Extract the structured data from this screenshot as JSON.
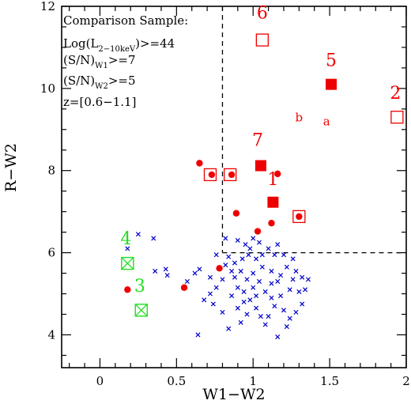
{
  "chart_data": {
    "type": "scatter",
    "title": "",
    "xlabel": "W1−W2",
    "ylabel": "R−W2",
    "xlim": [
      -0.25,
      2.0
    ],
    "ylim": [
      3.2,
      12.0
    ],
    "xticks": [
      0,
      0.5,
      1,
      1.5,
      2
    ],
    "xtick_labels": [
      "0",
      "0.5",
      "1",
      "1.5",
      "2"
    ],
    "yticks": [
      4,
      6,
      8,
      10,
      12
    ],
    "ytick_labels": [
      "4",
      "6",
      "8",
      "10",
      "12"
    ],
    "grid": false,
    "legend_position": "top-left",
    "legend": {
      "line1": "Comparison Sample:",
      "line2_main": "Log(L",
      "line2_sub": "2−10keV",
      "line2_tail": ")>=44",
      "line3_main": "(S/N)",
      "line3_sub": "W1",
      "line3_tail": ">=7",
      "line4_main": "(S/N)",
      "line4_sub": "W2",
      "line4_tail": ">=5",
      "line5": "z=[0.6−1.1]"
    },
    "region_cut": {
      "x_min": 0.8,
      "y_min": 6.0,
      "style": "dashed"
    },
    "series": [
      {
        "marker": "cross",
        "color": "#0000cc",
        "points": [
          [
            0.25,
            6.45
          ],
          [
            0.35,
            6.35
          ],
          [
            0.18,
            6.1
          ],
          [
            0.43,
            5.6
          ],
          [
            0.36,
            5.55
          ],
          [
            0.44,
            5.45
          ],
          [
            0.64,
            4.0
          ],
          [
            0.57,
            5.3
          ],
          [
            0.65,
            5.6
          ],
          [
            0.72,
            5.4
          ],
          [
            0.84,
            5.9
          ],
          [
            0.76,
            5.95
          ],
          [
            0.88,
            5.75
          ],
          [
            0.92,
            5.55
          ],
          [
            0.96,
            5.35
          ],
          [
            1.0,
            5.15
          ],
          [
            0.82,
            6.35
          ],
          [
            0.9,
            6.3
          ],
          [
            0.95,
            6.2
          ],
          [
            1.0,
            6.35
          ],
          [
            1.04,
            6.25
          ],
          [
            1.1,
            6.1
          ],
          [
            1.16,
            6.2
          ],
          [
            1.2,
            5.95
          ],
          [
            1.26,
            5.85
          ],
          [
            1.28,
            5.55
          ],
          [
            1.32,
            5.4
          ],
          [
            1.36,
            5.35
          ],
          [
            1.3,
            5.05
          ],
          [
            1.24,
            5.1
          ],
          [
            1.16,
            5.3
          ],
          [
            1.12,
            5.55
          ],
          [
            1.06,
            5.65
          ],
          [
            1.02,
            5.85
          ],
          [
            0.97,
            5.95
          ],
          [
            0.93,
            5.85
          ],
          [
            0.86,
            5.55
          ],
          [
            0.8,
            5.35
          ],
          [
            0.76,
            5.15
          ],
          [
            0.72,
            5.0
          ],
          [
            0.68,
            4.85
          ],
          [
            0.74,
            4.75
          ],
          [
            0.8,
            4.55
          ],
          [
            0.86,
            4.95
          ],
          [
            0.9,
            5.15
          ],
          [
            0.94,
            5.05
          ],
          [
            0.98,
            4.85
          ],
          [
            1.02,
            4.65
          ],
          [
            1.05,
            4.45
          ],
          [
            1.08,
            4.25
          ],
          [
            1.1,
            4.45
          ],
          [
            1.14,
            4.7
          ],
          [
            1.18,
            4.95
          ],
          [
            1.2,
            4.6
          ],
          [
            1.24,
            4.4
          ],
          [
            1.28,
            4.55
          ],
          [
            1.32,
            4.75
          ],
          [
            1.22,
            4.2
          ],
          [
            1.16,
            3.95
          ],
          [
            0.96,
            4.5
          ],
          [
            0.92,
            4.3
          ],
          [
            0.84,
            4.15
          ],
          [
            1.0,
            5.5
          ],
          [
            1.04,
            5.3
          ],
          [
            1.08,
            5.05
          ],
          [
            1.12,
            4.9
          ],
          [
            1.18,
            5.45
          ],
          [
            1.22,
            5.65
          ],
          [
            1.26,
            5.35
          ],
          [
            1.34,
            5.1
          ],
          [
            1.14,
            5.95
          ],
          [
            0.82,
            5.7
          ],
          [
            0.9,
            4.65
          ],
          [
            0.62,
            5.5
          ],
          [
            1.06,
            5.95
          ],
          [
            0.98,
            6.1
          ],
          [
            1.12,
            5.25
          ],
          [
            0.88,
            5.4
          ],
          [
            0.94,
            4.8
          ],
          [
            1.02,
            4.95
          ]
        ]
      },
      {
        "marker": "filled-circle",
        "color": "#ee0000",
        "points": [
          [
            0.18,
            5.1
          ],
          [
            0.55,
            5.15
          ],
          [
            0.78,
            5.62
          ],
          [
            0.65,
            8.18
          ],
          [
            0.73,
            7.9
          ],
          [
            0.86,
            7.9
          ],
          [
            0.89,
            6.96
          ],
          [
            1.03,
            6.52
          ],
          [
            1.12,
            6.72
          ],
          [
            1.16,
            7.92
          ],
          [
            1.3,
            6.88
          ]
        ]
      },
      {
        "marker": "filled-square",
        "color": "#ee0000",
        "points": [
          [
            1.51,
            10.1
          ],
          [
            1.05,
            8.12
          ],
          [
            1.13,
            7.23
          ]
        ]
      },
      {
        "marker": "open-square",
        "color": "#ee0000",
        "points": [
          [
            1.06,
            11.18
          ],
          [
            1.94,
            9.3
          ],
          [
            0.72,
            7.9
          ],
          [
            0.85,
            7.9
          ],
          [
            1.3,
            6.88
          ]
        ]
      },
      {
        "marker": "boxed-x",
        "color": "#22dd22",
        "points": [
          [
            0.18,
            5.74
          ],
          [
            0.27,
            4.6
          ]
        ]
      }
    ],
    "annotations": [
      {
        "text": "6",
        "x": 1.06,
        "y": 11.7,
        "color": "#ee0000",
        "size": 22
      },
      {
        "text": "5",
        "x": 1.51,
        "y": 10.55,
        "color": "#ee0000",
        "size": 22
      },
      {
        "text": "2",
        "x": 1.93,
        "y": 9.75,
        "color": "#ee0000",
        "size": 22
      },
      {
        "text": "b",
        "x": 1.3,
        "y": 9.2,
        "color": "#ee0000",
        "size": 15
      },
      {
        "text": "a",
        "x": 1.48,
        "y": 9.1,
        "color": "#ee0000",
        "size": 15
      },
      {
        "text": "7",
        "x": 1.03,
        "y": 8.6,
        "color": "#ee0000",
        "size": 22
      },
      {
        "text": "1",
        "x": 1.13,
        "y": 7.65,
        "color": "#ee0000",
        "size": 22
      },
      {
        "text": "4",
        "x": 0.17,
        "y": 6.2,
        "color": "#22dd22",
        "size": 22
      },
      {
        "text": "3",
        "x": 0.26,
        "y": 5.05,
        "color": "#22dd22",
        "size": 22
      }
    ]
  }
}
